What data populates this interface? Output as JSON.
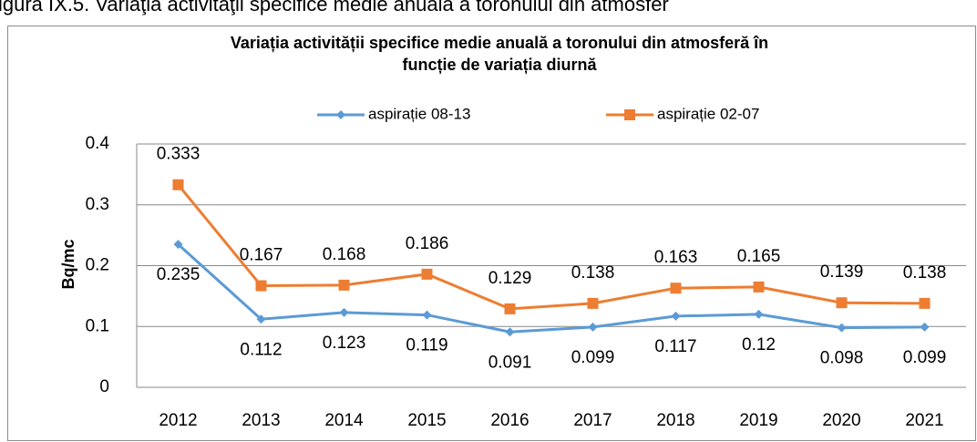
{
  "caption": "igura IX.5. Variaţia activităţii specifice medie anuală a toronului din atmosfer",
  "chart_data": {
    "type": "line",
    "title": [
      "Variația activității specifice medie anuală a toronului din atmosferă în",
      "funcție de variația diurnă"
    ],
    "y_label": "Bq/mc",
    "categories": [
      "2012",
      "2013",
      "2014",
      "2015",
      "2016",
      "2017",
      "2018",
      "2019",
      "2020",
      "2021"
    ],
    "series": [
      {
        "name": "aspirație 08-13",
        "color": "#5b9bd5",
        "marker": "diamond",
        "label_position": "below",
        "values": [
          0.235,
          0.112,
          0.123,
          0.119,
          0.091,
          0.099,
          0.117,
          0.12,
          0.098,
          0.099
        ]
      },
      {
        "name": "aspirație 02-07",
        "color": "#ed7d31",
        "marker": "square",
        "label_position": "above",
        "values": [
          0.333,
          0.167,
          0.168,
          0.186,
          0.129,
          0.138,
          0.163,
          0.165,
          0.139,
          0.138
        ]
      }
    ],
    "ylim": [
      0,
      0.4
    ],
    "yticks": [
      0,
      0.1,
      0.2,
      0.3,
      0.4
    ],
    "grid": true,
    "legend": "top"
  }
}
